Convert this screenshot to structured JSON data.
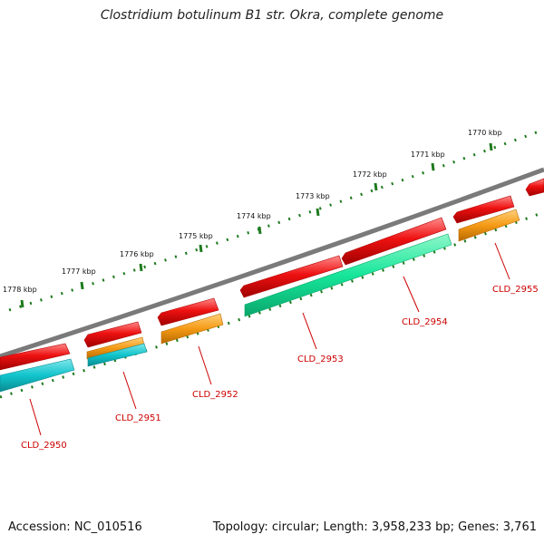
{
  "title": "Clostridium botulinum B1 str. Okra, complete genome",
  "footer": {
    "accession": "Accession: NC_010516",
    "info": "Topology: circular; Length: 3,958,233 bp; Genes: 3,761"
  },
  "kbp_labels": [
    "1770 kbp",
    "1771 kbp",
    "1772 kbp",
    "1773 kbp",
    "1774 kbp",
    "1775 kbp",
    "1776 kbp",
    "1777 kbp",
    "1778 kbp"
  ],
  "genes": [
    {
      "name": "CLD_2950"
    },
    {
      "name": "CLD_2951"
    },
    {
      "name": "CLD_2952"
    },
    {
      "name": "CLD_2953"
    },
    {
      "name": "CLD_2954"
    },
    {
      "name": "CLD_2955"
    }
  ],
  "colors": {
    "backbone": "#7a7a7a",
    "gene": "#ee1111",
    "cds_cyan": "#11c4cc",
    "cds_orange": "#f59a16",
    "cds_green": "#16e69a",
    "tick": "#1e7a1e",
    "label": "#cc0000"
  }
}
